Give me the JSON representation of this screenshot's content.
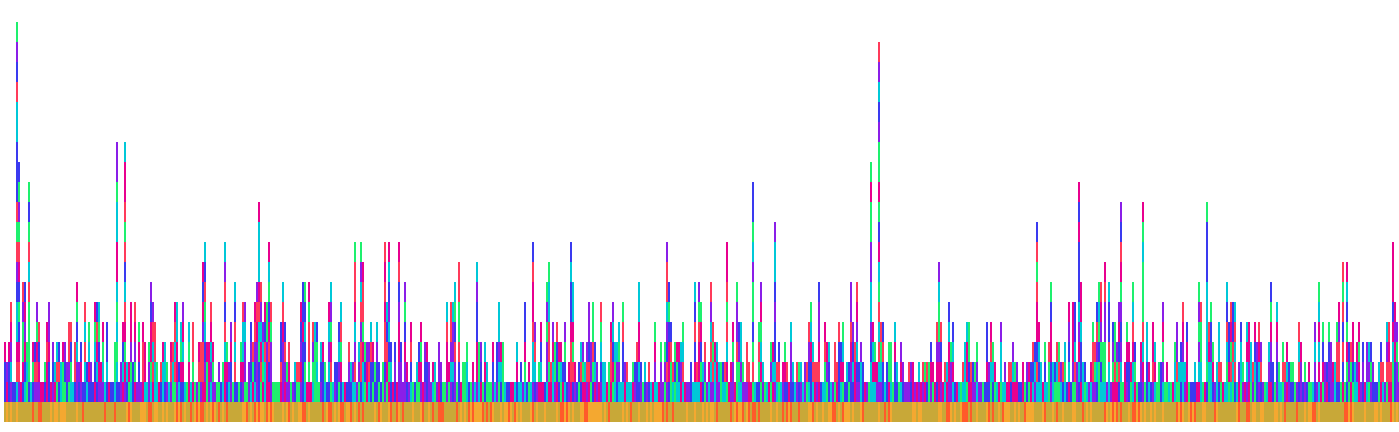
{
  "chart_data": {
    "type": "bar",
    "stacked": true,
    "title": "",
    "xlabel": "",
    "ylabel": "",
    "axes_visible": false,
    "grid": false,
    "legend": "none",
    "unit_height": 1,
    "ylim": [
      0,
      20
    ],
    "palette": [
      "#f4a830",
      "#c8a838",
      "#ff5a2a",
      "#1ef06e",
      "#00c8d8",
      "#3a3af0",
      "#8a1ee8",
      "#e8008e",
      "#ff3a5a"
    ],
    "num_columns": 699,
    "highlighted_columns": [
      {
        "column": 6,
        "total": 20
      },
      {
        "column": 7,
        "total": 13
      },
      {
        "column": 12,
        "total": 12
      },
      {
        "column": 56,
        "total": 14
      },
      {
        "column": 60,
        "total": 14
      },
      {
        "column": 127,
        "total": 11
      },
      {
        "column": 374,
        "total": 12
      },
      {
        "column": 433,
        "total": 13
      },
      {
        "column": 437,
        "total": 19
      },
      {
        "column": 385,
        "total": 10
      },
      {
        "column": 537,
        "total": 12
      },
      {
        "column": 558,
        "total": 11
      },
      {
        "column": 569,
        "total": 11
      },
      {
        "column": 601,
        "total": 11
      },
      {
        "column": 516,
        "total": 10
      }
    ],
    "seed": 7
  }
}
